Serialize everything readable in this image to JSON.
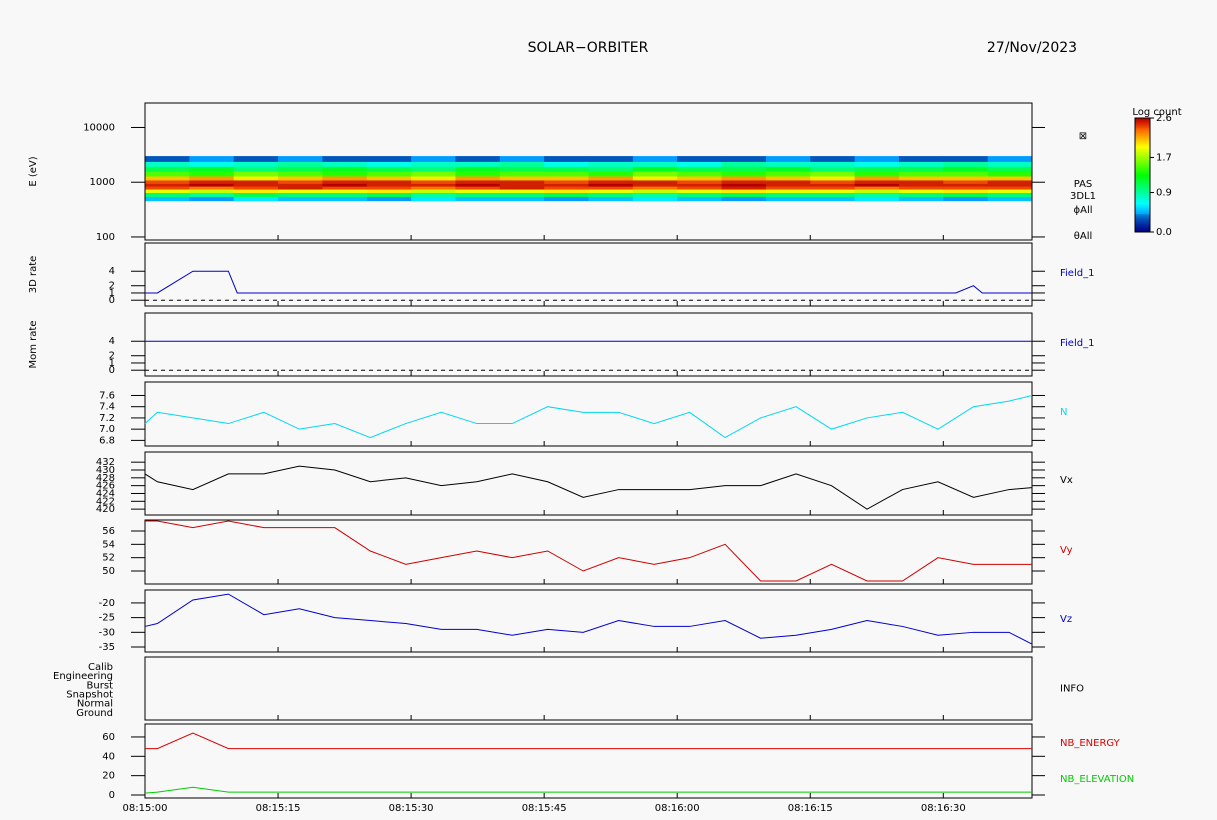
{
  "header": {
    "title": "SOLAR−ORBITER",
    "date": "27/Nov/2023"
  },
  "chart_data": [
    {
      "type": "heatmap",
      "ylabel": "E (eV)",
      "log_y": true,
      "ylim": [
        88,
        28000
      ],
      "yticks": [
        100,
        1000,
        10000
      ],
      "x": [
        0,
        5,
        10,
        15,
        20,
        25,
        30,
        35,
        40,
        45,
        50,
        55,
        60,
        65,
        70,
        75,
        80,
        85,
        90,
        95,
        100
      ],
      "y_bins": [
        460,
        550,
        650,
        750,
        850,
        950,
        1100,
        1300,
        1600,
        1950,
        2400,
        3000
      ],
      "z": [
        [
          0.5,
          0.4,
          0.6,
          0.5,
          0.5,
          0.4,
          0.6,
          0.5,
          0.5,
          0.4,
          0.5,
          0.6,
          0.5,
          0.4,
          0.5,
          0.5,
          0.6,
          0.5,
          0.4,
          0.5
        ],
        [
          1.0,
          0.9,
          1.1,
          1.0,
          1.0,
          1.1,
          0.9,
          1.0,
          1.0,
          1.1,
          1.0,
          0.9,
          1.0,
          1.1,
          1.0,
          1.0,
          0.9,
          1.0,
          1.1,
          1.0
        ],
        [
          1.9,
          1.8,
          2.0,
          1.9,
          1.9,
          2.0,
          1.8,
          1.9,
          1.9,
          2.0,
          1.9,
          1.8,
          1.9,
          2.0,
          1.9,
          1.9,
          1.8,
          1.9,
          2.0,
          1.9
        ],
        [
          2.4,
          2.3,
          2.4,
          2.5,
          2.4,
          2.4,
          2.3,
          2.4,
          2.5,
          2.4,
          2.4,
          2.3,
          2.4,
          2.5,
          2.4,
          2.4,
          2.3,
          2.4,
          2.4,
          2.4
        ],
        [
          2.5,
          2.6,
          2.5,
          2.5,
          2.6,
          2.5,
          2.5,
          2.6,
          2.5,
          2.5,
          2.6,
          2.5,
          2.5,
          2.6,
          2.5,
          2.5,
          2.6,
          2.5,
          2.5,
          2.5
        ],
        [
          2.4,
          2.5,
          2.5,
          2.4,
          2.5,
          2.5,
          2.4,
          2.5,
          2.5,
          2.4,
          2.5,
          2.5,
          2.4,
          2.5,
          2.5,
          2.4,
          2.5,
          2.5,
          2.4,
          2.5
        ],
        [
          2.1,
          2.2,
          2.0,
          2.1,
          2.2,
          2.1,
          2.0,
          2.2,
          2.1,
          2.1,
          2.2,
          2.0,
          2.1,
          2.2,
          2.1,
          2.0,
          2.2,
          2.1,
          2.1,
          2.1
        ],
        [
          1.5,
          1.4,
          1.6,
          1.5,
          1.4,
          1.5,
          1.6,
          1.4,
          1.5,
          1.5,
          1.4,
          1.6,
          1.5,
          1.4,
          1.5,
          1.6,
          1.4,
          1.5,
          1.5,
          1.4
        ],
        [
          1.1,
          1.2,
          1.0,
          1.1,
          1.2,
          1.1,
          1.0,
          1.2,
          1.1,
          1.1,
          1.0,
          1.2,
          1.1,
          1.1,
          1.2,
          1.0,
          1.1,
          1.1,
          1.2,
          1.1
        ],
        [
          0.8,
          0.7,
          0.8,
          0.9,
          0.8,
          0.7,
          0.8,
          0.8,
          0.9,
          0.7,
          0.8,
          0.8,
          0.7,
          0.9,
          0.8,
          0.8,
          0.7,
          0.8,
          0.9,
          0.8
        ],
        [
          0.3,
          0.4,
          0.3,
          0.4,
          0.3,
          0.3,
          0.4,
          0.3,
          0.4,
          0.3,
          0.3,
          0.4,
          0.3,
          0.3,
          0.4,
          0.3,
          0.4,
          0.3,
          0.3,
          0.4
        ]
      ],
      "annotations": [
        "⊠",
        "PAS",
        "3DL1",
        "ϕAll",
        "θAll"
      ],
      "colorbar": {
        "label": "Log count",
        "lim": [
          0,
          2.6
        ],
        "ticks": [
          2.6,
          1.7,
          0.9,
          {
            "value": 0,
            "label": "0.0"
          }
        ]
      }
    },
    {
      "type": "line",
      "ylabel": "3D rate",
      "ylim": [
        -0.8,
        7.9
      ],
      "yticks": [
        0,
        1,
        2,
        4
      ],
      "hline": 0,
      "x": [
        0,
        1.4,
        5.4,
        9.4,
        10.4,
        91.4,
        93.4,
        94.4,
        100
      ],
      "series": [
        {
          "name": "Field_1",
          "color": "#0000cc",
          "values": [
            1,
            1,
            4,
            4,
            1,
            1,
            2,
            1,
            1
          ]
        }
      ]
    },
    {
      "type": "line",
      "ylabel": "Mom rate",
      "ylim": [
        -0.8,
        7.9
      ],
      "yticks": [
        0,
        1,
        2,
        4
      ],
      "hline": 0,
      "x": [
        0,
        100
      ],
      "series": [
        {
          "name": "Field_1",
          "color": "#0000cc",
          "values": [
            4,
            4
          ]
        }
      ]
    },
    {
      "type": "line",
      "ylim": [
        6.7,
        7.84
      ],
      "yticks": [
        {
          "value": 6.8,
          "label": "6.8"
        },
        {
          "value": 7,
          "label": "7.0"
        },
        {
          "value": 7.2,
          "label": "7.2"
        },
        {
          "value": 7.4,
          "label": "7.4"
        },
        {
          "value": 7.6,
          "label": "7.6"
        }
      ],
      "x": [
        0,
        1.4,
        5.4,
        9.4,
        13.4,
        17.4,
        21.4,
        25.4,
        29.4,
        33.4,
        37.4,
        41.4,
        45.4,
        49.4,
        53.4,
        57.4,
        61.4,
        65.4,
        69.4,
        73.4,
        77.4,
        81.4,
        85.4,
        89.4,
        93.4,
        97.4,
        100
      ],
      "series": [
        {
          "name": "N",
          "color": "#00d8f0",
          "values": [
            7.1,
            7.3,
            7.2,
            7.1,
            7.3,
            7.0,
            7.1,
            6.85,
            7.1,
            7.3,
            7.1,
            7.1,
            7.4,
            7.3,
            7.3,
            7.1,
            7.3,
            6.85,
            7.2,
            7.4,
            7.0,
            7.2,
            7.3,
            7.0,
            7.4,
            7.5,
            7.6
          ]
        }
      ]
    },
    {
      "type": "line",
      "ylim": [
        418.5,
        434.6
      ],
      "yticks": [
        420,
        422,
        424,
        426,
        428,
        430,
        432
      ],
      "x": [
        0,
        1.4,
        5.4,
        9.4,
        13.4,
        17.4,
        21.4,
        25.4,
        29.4,
        33.4,
        37.4,
        41.4,
        45.4,
        49.4,
        53.4,
        57.4,
        61.4,
        65.4,
        69.4,
        73.4,
        77.4,
        81.4,
        85.4,
        89.4,
        93.4,
        97.4,
        100
      ],
      "series": [
        {
          "name": "Vx",
          "color": "#000000",
          "values": [
            429,
            427,
            425,
            429,
            429,
            431,
            430,
            427,
            428,
            426,
            427,
            429,
            427,
            423,
            425,
            425,
            425,
            426,
            426,
            429,
            426,
            420,
            425,
            427,
            423,
            425,
            425.5
          ]
        }
      ]
    },
    {
      "type": "line",
      "ylim": [
        48.05,
        57.65
      ],
      "yticks": [
        50,
        52,
        54,
        56
      ],
      "x": [
        0,
        1.4,
        5.4,
        9.4,
        13.4,
        17.4,
        21.4,
        25.4,
        29.4,
        33.4,
        37.4,
        41.4,
        45.4,
        49.4,
        53.4,
        57.4,
        61.4,
        65.4,
        69.4,
        73.4,
        77.4,
        81.4,
        85.4,
        89.4,
        93.4,
        97.4,
        100
      ],
      "series": [
        {
          "name": "Vy",
          "color": "#cc0000",
          "values": [
            57.5,
            57.5,
            56.5,
            57.5,
            56.5,
            56.5,
            56.5,
            53,
            51,
            52,
            53,
            52,
            53,
            50,
            52,
            51,
            52,
            54,
            48.5,
            48.5,
            51,
            48.5,
            48.5,
            52,
            51,
            51,
            51
          ]
        }
      ]
    },
    {
      "type": "line",
      "ylim": [
        -36.7,
        -15.6
      ],
      "yticks": [
        -35,
        -30,
        -25,
        -20
      ],
      "x": [
        0,
        1.4,
        5.4,
        9.4,
        13.4,
        17.4,
        21.4,
        25.4,
        29.4,
        33.4,
        37.4,
        41.4,
        45.4,
        49.4,
        53.4,
        57.4,
        61.4,
        65.4,
        69.4,
        73.4,
        77.4,
        81.4,
        85.4,
        89.4,
        93.4,
        97.4,
        100
      ],
      "series": [
        {
          "name": "Vz",
          "color": "#0000cc",
          "values": [
            -28,
            -27,
            -19,
            -17,
            -24,
            -22,
            -25,
            -26,
            -27,
            -29,
            -29,
            -31,
            -29,
            -30,
            -26,
            -28,
            -28,
            -26,
            -32,
            -31,
            -29,
            -26,
            -28,
            -31,
            -30,
            -30,
            -34
          ]
        }
      ]
    },
    {
      "type": "categorical",
      "categories": [
        "Calib",
        "Engineering",
        "Burst",
        "Snapshot",
        "Normal",
        "Ground"
      ],
      "label": "INFO"
    },
    {
      "type": "line",
      "ylim": [
        -3.1,
        73.4
      ],
      "yticks": [
        0,
        20,
        40,
        60
      ],
      "xlim": [
        0,
        100
      ],
      "xticks": [
        {
          "value": 0,
          "label": "08:15:00"
        },
        {
          "value": 15,
          "label": "08:15:15"
        },
        {
          "value": 30,
          "label": "08:15:30"
        },
        {
          "value": 45,
          "label": "08:15:45"
        },
        {
          "value": 60,
          "label": "08:16:00"
        },
        {
          "value": 75,
          "label": "08:16:15"
        },
        {
          "value": 90,
          "label": "08:16:30"
        }
      ],
      "x": [
        0,
        1.4,
        5.4,
        9.4,
        100
      ],
      "series": [
        {
          "name": "NB_ENERGY",
          "color": "#dd0000",
          "values": [
            48,
            48,
            64,
            48,
            48
          ]
        },
        {
          "name": "NB_ELEVATION",
          "color": "#00cc00",
          "values": [
            2,
            3,
            8,
            3,
            3
          ]
        }
      ]
    }
  ]
}
